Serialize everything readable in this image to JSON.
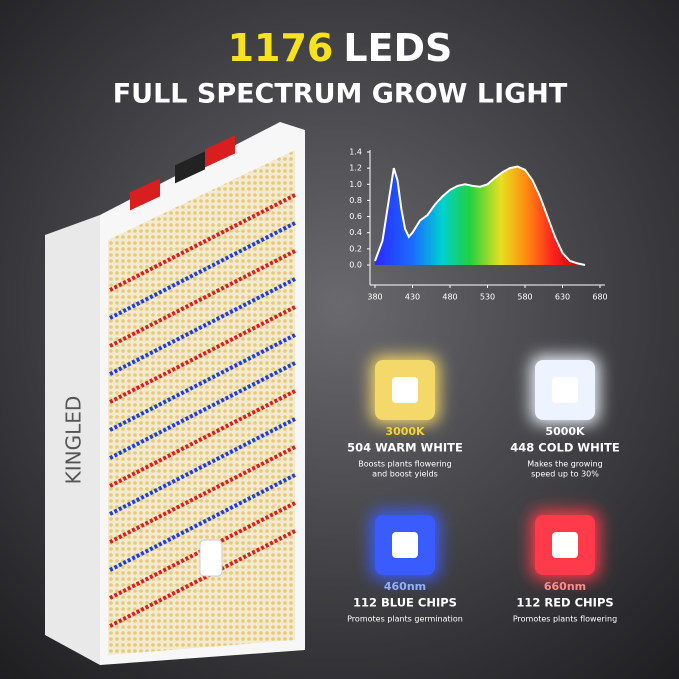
{
  "headline": {
    "number": "1176",
    "word": "LEDS"
  },
  "subtitle": "FULL SPECTRUM GROW LIGHT",
  "brand": "KINGLED",
  "chart_data": {
    "type": "area",
    "x": [
      380,
      390,
      400,
      405,
      410,
      415,
      420,
      425,
      430,
      440,
      450,
      460,
      470,
      480,
      490,
      500,
      510,
      520,
      530,
      540,
      550,
      560,
      570,
      580,
      590,
      600,
      610,
      620,
      630,
      640,
      650,
      660
    ],
    "values": [
      0.05,
      0.3,
      0.9,
      1.2,
      1.05,
      0.7,
      0.45,
      0.35,
      0.4,
      0.55,
      0.62,
      0.75,
      0.85,
      0.93,
      0.98,
      1.0,
      0.98,
      0.97,
      1.0,
      1.08,
      1.15,
      1.2,
      1.22,
      1.18,
      1.05,
      0.85,
      0.6,
      0.35,
      0.15,
      0.05,
      0.02,
      0
    ],
    "xlim": [
      380,
      680
    ],
    "ylim": [
      0,
      1.4
    ],
    "xticks": [
      380,
      430,
      480,
      530,
      580,
      630,
      680
    ],
    "yticks": [
      {
        "value": 0,
        "label": "0.0"
      },
      0.2,
      0.4,
      0.6,
      0.8,
      {
        "value": 1,
        "label": "1.0"
      },
      1.2,
      1.4
    ]
  },
  "cards": [
    {
      "temp": "3000K",
      "name": "504 WARM WHITE",
      "desc": [
        "Boosts plants flowering",
        "and boost yields"
      ]
    },
    {
      "temp": "5000K",
      "name": "448 COLD WHITE",
      "desc": [
        "Makes the growing",
        "speed up to 30%"
      ]
    },
    {
      "temp": "460nm",
      "name": "112 BLUE CHIPS",
      "desc": [
        "Promotes plants germination"
      ]
    },
    {
      "temp": "660nm",
      "name": "112 RED CHIPS",
      "desc": [
        "Promotes plants flowering"
      ]
    }
  ]
}
